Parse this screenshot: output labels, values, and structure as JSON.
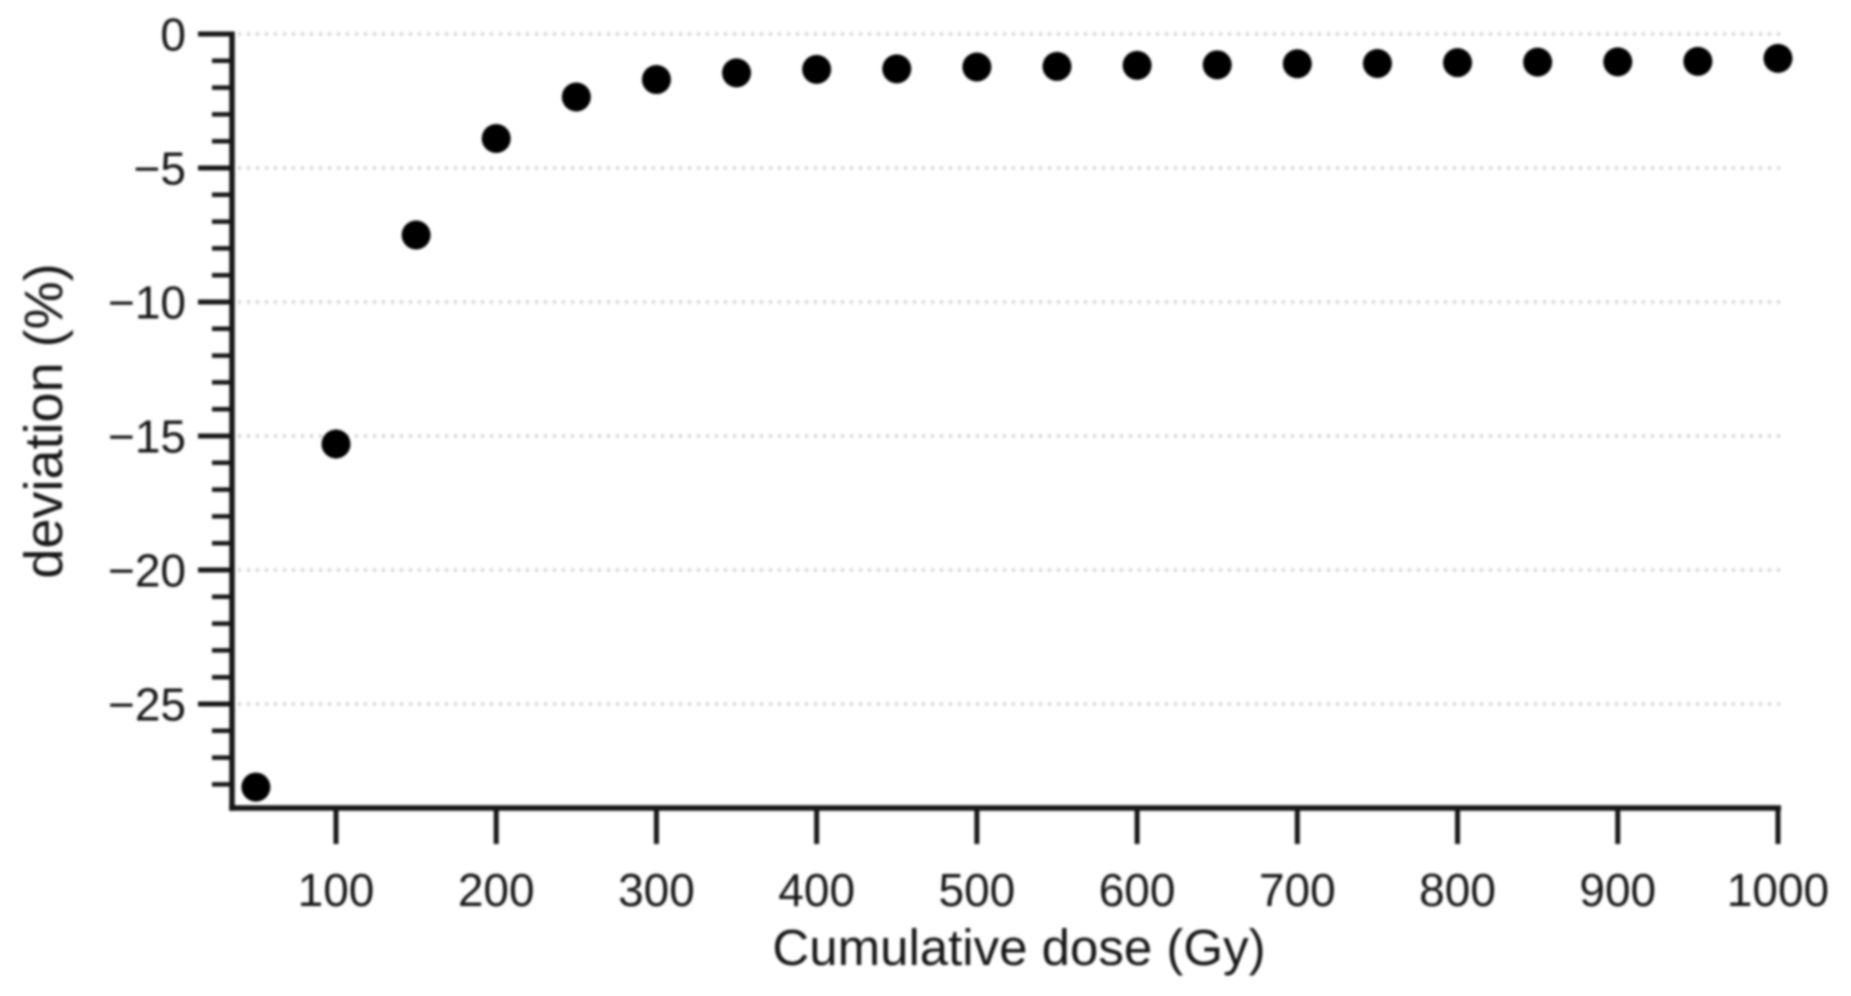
{
  "figure": {
    "description": "Scatter plot of percent deviation versus cumulative dose",
    "background": "#ffffff"
  },
  "chart_data": {
    "type": "scatter",
    "title": "",
    "xlabel": "Cumulative dose (Gy)",
    "ylabel": "deviation (%)",
    "x": [
      50,
      100,
      150,
      200,
      250,
      300,
      350,
      400,
      450,
      500,
      550,
      600,
      650,
      700,
      750,
      800,
      850,
      900,
      950,
      1000
    ],
    "y": [
      -28.1,
      -15.3,
      -7.5,
      -3.9,
      -2.35,
      -1.7,
      -1.45,
      -1.32,
      -1.3,
      -1.23,
      -1.21,
      -1.17,
      -1.15,
      -1.11,
      -1.1,
      -1.07,
      -1.05,
      -1.04,
      -1.02,
      -0.91
    ],
    "xlim": [
      35,
      1010
    ],
    "ylim": [
      -28.9,
      0
    ],
    "x_ticks": [
      100,
      200,
      300,
      400,
      500,
      600,
      700,
      800,
      900,
      1000
    ],
    "x_tick_labels": [
      "100",
      "200",
      "300",
      "400",
      "500",
      "600",
      "700",
      "800",
      "900",
      "1000"
    ],
    "y_major_ticks": [
      0,
      -5,
      -10,
      -15,
      -20,
      -25
    ],
    "y_tick_labels": [
      "0",
      "−5",
      "−10",
      "−15",
      "−20",
      "−25"
    ],
    "y_minor_tick_step": 1,
    "grid": "horizontal dotted lines at major y ticks",
    "legend": "none",
    "marker": {
      "shape": "circle",
      "color": "#000000"
    },
    "colors": {
      "axis": "#161616",
      "text": "#161616",
      "gridline": "#d2d2d2",
      "background": "#ffffff",
      "marker": "#000000"
    }
  }
}
